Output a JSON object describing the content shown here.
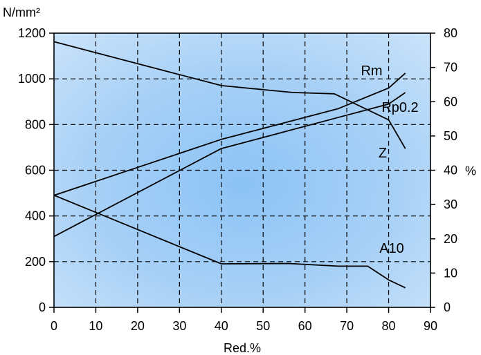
{
  "chart_data": {
    "type": "line",
    "xlabel": "Red.%",
    "ylabel_left": "N/mm²",
    "ylabel_right": "%",
    "xlim": [
      0,
      90
    ],
    "ylim_left": [
      0,
      1200
    ],
    "ylim_right": [
      0,
      80
    ],
    "x_ticks": [
      0,
      10,
      20,
      30,
      40,
      50,
      60,
      70,
      80,
      90
    ],
    "y_left_ticks": [
      0,
      200,
      400,
      600,
      800,
      1000,
      1200
    ],
    "y_right_ticks": [
      0,
      10,
      20,
      30,
      40,
      50,
      60,
      70,
      80
    ],
    "grid": true,
    "background_color": "#8cc3f5",
    "series": [
      {
        "name": "Rm",
        "axis": "left",
        "x": [
          0,
          40,
          68,
          80,
          84
        ],
        "y": [
          490,
          735,
          870,
          960,
          1025
        ]
      },
      {
        "name": "Rp0.2",
        "axis": "left",
        "x": [
          0,
          40,
          80,
          84
        ],
        "y": [
          310,
          695,
          890,
          940
        ]
      },
      {
        "name": "Z",
        "axis": "right",
        "x": [
          0,
          40,
          57,
          67,
          80,
          84
        ],
        "y": [
          77.5,
          64.7,
          62.7,
          62.3,
          54.7,
          46.3
        ]
      },
      {
        "name": "A10",
        "axis": "right",
        "x": [
          0,
          40,
          56,
          68,
          75,
          80,
          84
        ],
        "y": [
          32.7,
          12.7,
          12.8,
          12.0,
          12.0,
          8.0,
          5.7
        ]
      }
    ]
  }
}
